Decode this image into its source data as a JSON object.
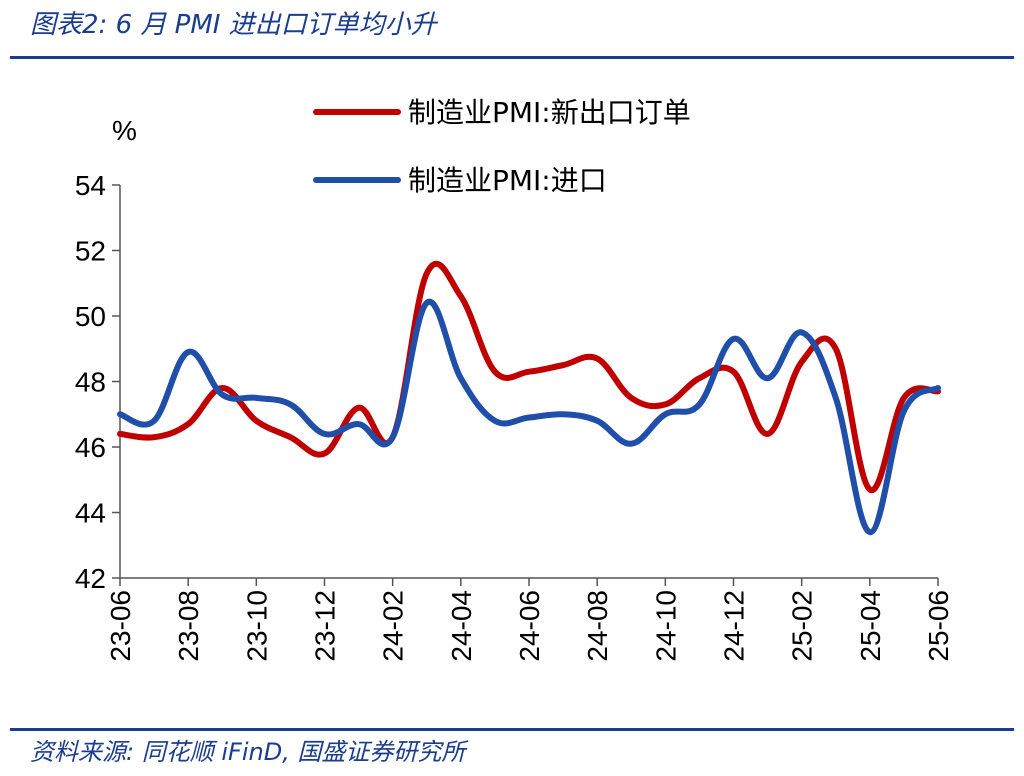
{
  "header": {
    "title": "图表2:  6 月 PMI 进出口订单均小升"
  },
  "footer": {
    "source": "资料来源:  同花顺 iFinD,  国盛证券研究所"
  },
  "chart_data": {
    "type": "line",
    "ylabel": "%",
    "ylim": [
      42,
      54
    ],
    "yticks": [
      "54",
      "52",
      "50",
      "48",
      "46",
      "44",
      "42"
    ],
    "xticks": [
      "23-06",
      "23-08",
      "23-10",
      "23-12",
      "24-02",
      "24-04",
      "24-06",
      "24-08",
      "24-10",
      "24-12",
      "25-02",
      "25-04",
      "25-06"
    ],
    "x": [
      "23-06",
      "23-07",
      "23-08",
      "23-09",
      "23-10",
      "23-11",
      "23-12",
      "24-01",
      "24-02",
      "24-03",
      "24-04",
      "24-05",
      "24-06",
      "24-07",
      "24-08",
      "24-09",
      "24-10",
      "24-11",
      "24-12",
      "25-01",
      "25-02",
      "25-03",
      "25-04",
      "25-05",
      "25-06"
    ],
    "series": [
      {
        "name": "制造业PMI:新出口订单",
        "color": "#c00000",
        "values": [
          46.4,
          46.3,
          46.7,
          47.8,
          46.8,
          46.3,
          45.8,
          47.2,
          46.3,
          51.3,
          50.6,
          48.3,
          48.3,
          48.5,
          48.7,
          47.5,
          47.3,
          48.1,
          48.3,
          46.4,
          48.6,
          49.0,
          44.7,
          47.5,
          47.7
        ]
      },
      {
        "name": "制造业PMI:进口",
        "color": "#1f4fa8",
        "values": [
          47.0,
          46.8,
          48.9,
          47.6,
          47.5,
          47.3,
          46.4,
          46.7,
          46.3,
          50.4,
          48.1,
          46.8,
          46.9,
          47.0,
          46.8,
          46.1,
          47.0,
          47.3,
          49.3,
          48.1,
          49.5,
          47.5,
          43.4,
          47.1,
          47.8
        ]
      }
    ],
    "legend": "top"
  }
}
